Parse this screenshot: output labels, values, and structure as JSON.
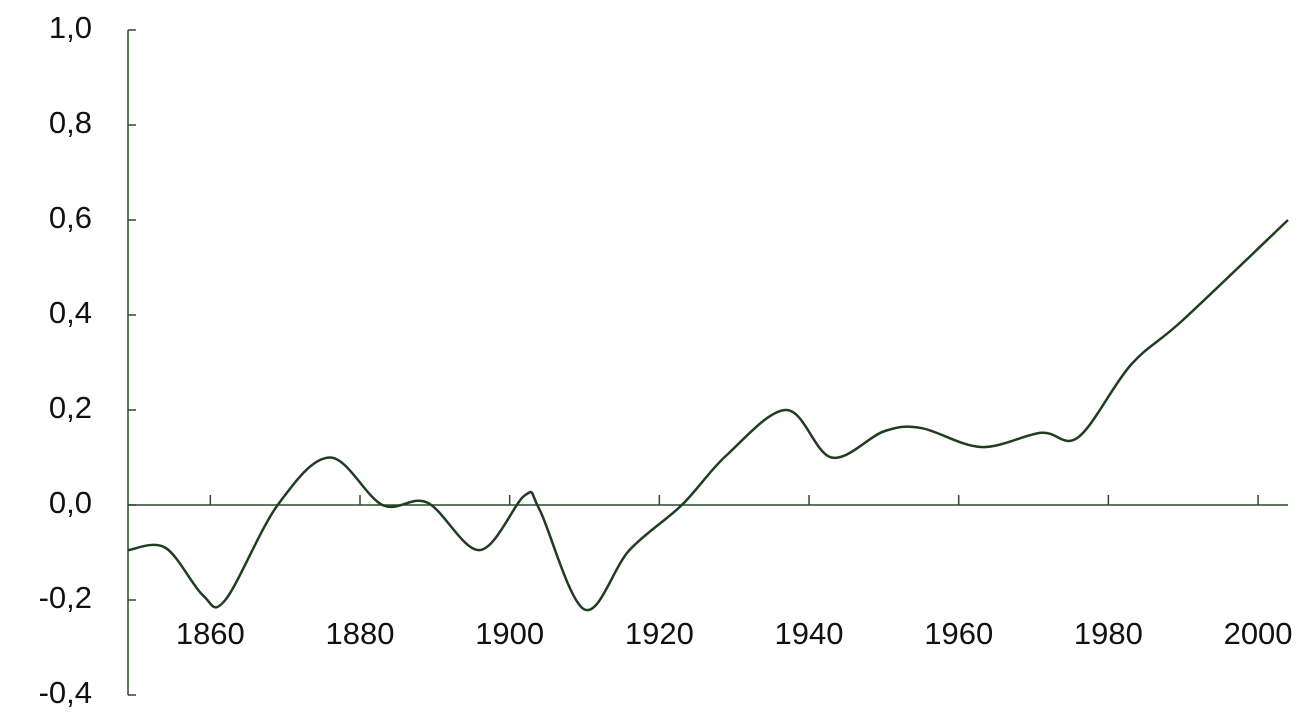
{
  "chart_data": {
    "type": "line",
    "x": [
      1849,
      1854,
      1859,
      1862,
      1869,
      1876,
      1883,
      1889,
      1896,
      1902,
      1904,
      1910,
      1916,
      1923,
      1929,
      1937,
      1943,
      1950,
      1955,
      1963,
      1971,
      1976,
      1983,
      1990,
      2004
    ],
    "series": [
      {
        "color": "#1f3d1f",
        "values": [
          -0.095,
          -0.09,
          -0.19,
          -0.2,
          0,
          0.1,
          0,
          0.005,
          -0.095,
          0.02,
          -0.01,
          -0.22,
          -0.095,
          0,
          0.105,
          0.2,
          0.1,
          0.155,
          0.162,
          0.122,
          0.152,
          0.143,
          0.295,
          0.39,
          0.6
        ]
      }
    ],
    "xlim": [
      1849,
      2004
    ],
    "xticks": [
      1860,
      1880,
      1900,
      1920,
      1940,
      1960,
      1980,
      2000
    ],
    "ylim": [
      -0.4,
      1.0
    ],
    "yticks": [
      {
        "value": -0.4,
        "label": "-0,4"
      },
      {
        "value": -0.2,
        "label": "-0,2"
      },
      {
        "value": 0,
        "label": "0,0"
      },
      {
        "value": 0.2,
        "label": "0,2"
      },
      {
        "value": 0.4,
        "label": "0,4"
      },
      {
        "value": 0.6,
        "label": "0,6"
      },
      {
        "value": 0.8,
        "label": "0,8"
      },
      {
        "value": 1.0,
        "label": "1,0"
      }
    ]
  }
}
